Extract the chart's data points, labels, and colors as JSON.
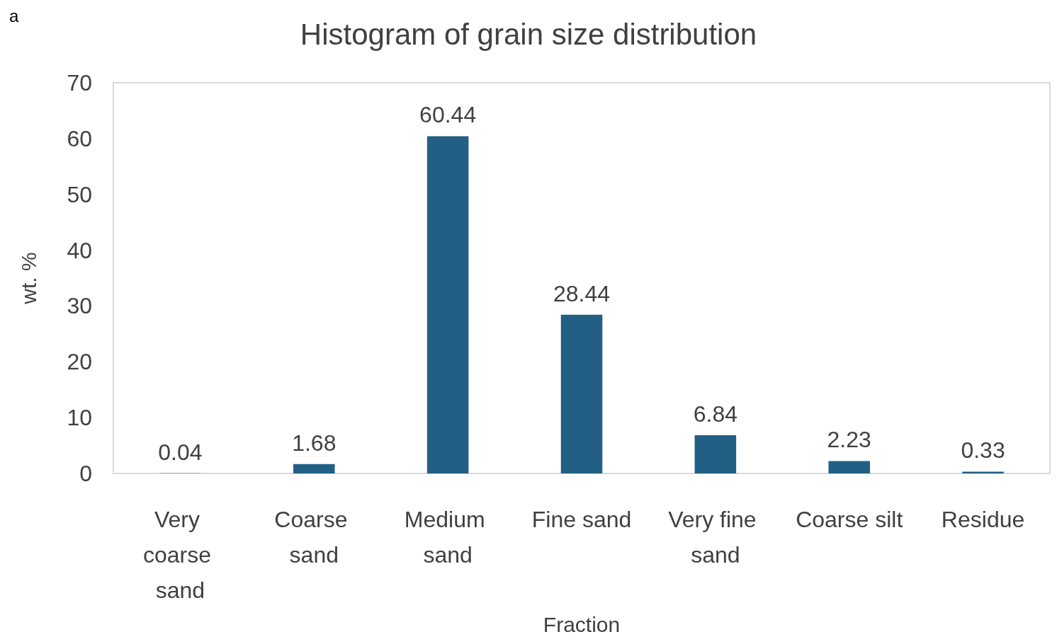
{
  "chart_data": {
    "type": "bar",
    "title": "Histogram of grain size distribution",
    "xlabel": "Fraction",
    "ylabel": "wt. %",
    "annotations": [
      "a"
    ],
    "categories": [
      "Very coarse sand",
      "Coarse sand",
      "Medium sand",
      "Fine sand",
      "Very fine sand",
      "Coarse silt",
      "Residue"
    ],
    "values": [
      0.04,
      1.68,
      60.44,
      28.44,
      6.84,
      2.23,
      0.33
    ],
    "color": "#225f85",
    "data_labels": true,
    "ylim": [
      0,
      70
    ],
    "yticks": [
      0,
      10,
      20,
      30,
      40,
      50,
      60,
      70
    ],
    "grid": false
  }
}
